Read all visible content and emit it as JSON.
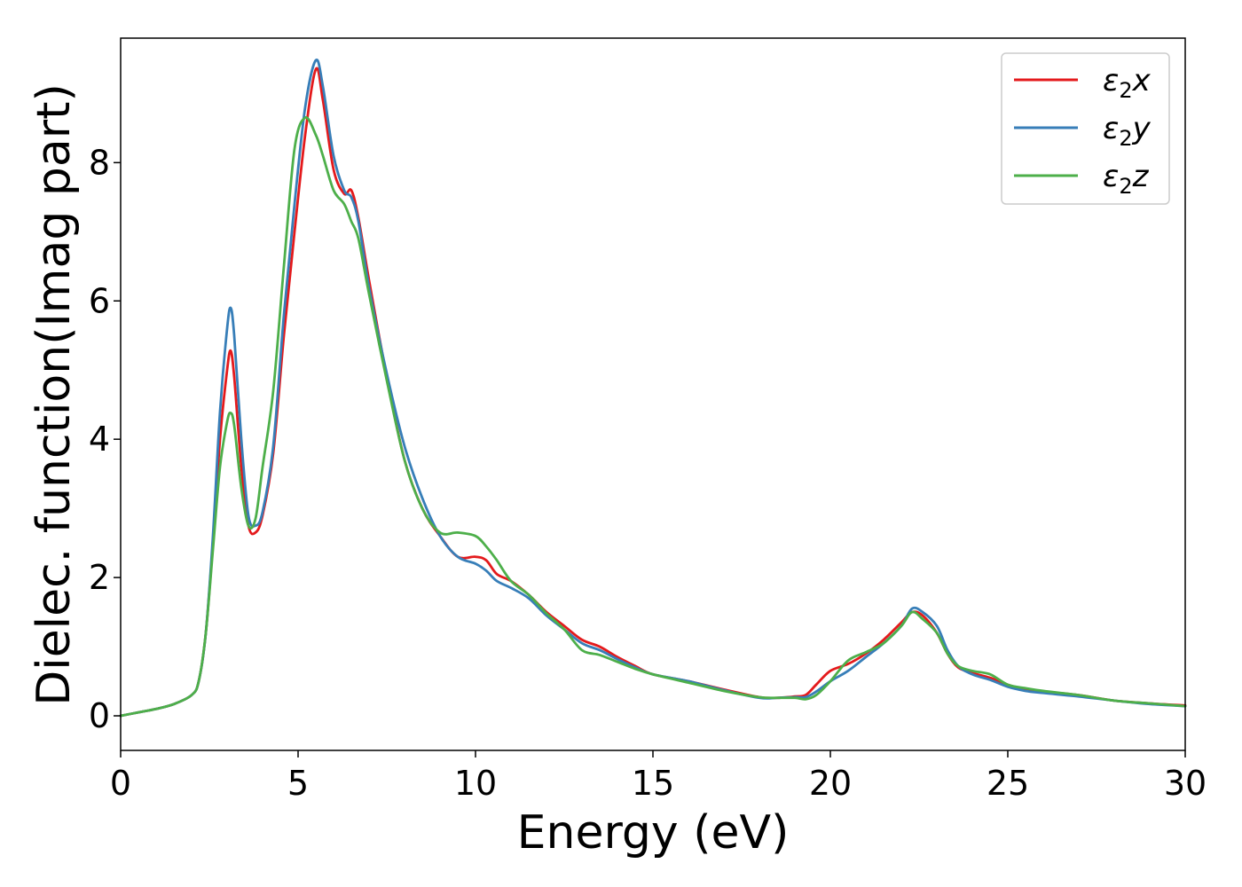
{
  "chart_data": {
    "type": "line",
    "title": "",
    "xlabel": "Energy (eV)",
    "ylabel": "Dielec. function(Imag part)",
    "xlim": [
      0,
      30
    ],
    "ylim": [
      -0.5,
      9.8
    ],
    "xticks": [
      0,
      5,
      10,
      15,
      20,
      25,
      30
    ],
    "xtick_labels": [
      "0",
      "5",
      "10",
      "15",
      "20",
      "25",
      "30"
    ],
    "yticks": [
      0,
      2,
      4,
      6,
      8
    ],
    "ytick_labels": [
      "0",
      "2",
      "4",
      "6",
      "8"
    ],
    "grid": false,
    "legend_position": "top-right",
    "series": [
      {
        "name": "ε₂x",
        "legend_main": "ε",
        "legend_sub": "2",
        "legend_suffix": "x",
        "color": "#e41a1c",
        "x": [
          0,
          0.5,
          1.0,
          1.5,
          2.0,
          2.2,
          2.4,
          2.6,
          2.8,
          3.0,
          3.1,
          3.2,
          3.4,
          3.6,
          3.8,
          4.0,
          4.3,
          4.6,
          4.9,
          5.2,
          5.5,
          5.7,
          6.0,
          6.3,
          6.5,
          6.7,
          7.0,
          7.5,
          8.0,
          8.5,
          9.0,
          9.5,
          10.0,
          10.3,
          10.6,
          11.0,
          11.5,
          12.0,
          12.5,
          13.0,
          13.5,
          14.0,
          14.5,
          15.0,
          16.0,
          17.0,
          18.0,
          18.5,
          19.0,
          19.3,
          19.6,
          20.0,
          20.5,
          21.0,
          21.5,
          22.0,
          22.3,
          22.6,
          23.0,
          23.3,
          23.6,
          24.0,
          24.5,
          25.0,
          25.5,
          26.0,
          27.0,
          28.0,
          29.0,
          30.0
        ],
        "values": [
          0.0,
          0.05,
          0.1,
          0.17,
          0.3,
          0.5,
          1.2,
          2.5,
          4.0,
          5.0,
          5.28,
          4.9,
          3.6,
          2.75,
          2.65,
          2.9,
          3.8,
          5.5,
          7.0,
          8.4,
          9.35,
          8.9,
          7.9,
          7.55,
          7.6,
          7.2,
          6.3,
          4.9,
          3.7,
          3.0,
          2.6,
          2.3,
          2.3,
          2.25,
          2.05,
          1.95,
          1.75,
          1.5,
          1.3,
          1.1,
          1.0,
          0.85,
          0.72,
          0.6,
          0.5,
          0.38,
          0.27,
          0.26,
          0.28,
          0.3,
          0.45,
          0.65,
          0.75,
          0.9,
          1.1,
          1.35,
          1.5,
          1.45,
          1.2,
          0.9,
          0.7,
          0.62,
          0.55,
          0.45,
          0.38,
          0.35,
          0.3,
          0.22,
          0.18,
          0.15
        ]
      },
      {
        "name": "ε₂y",
        "legend_main": "ε",
        "legend_sub": "2",
        "legend_suffix": "y",
        "color": "#377eb8",
        "x": [
          0,
          0.5,
          1.0,
          1.5,
          2.0,
          2.2,
          2.4,
          2.6,
          2.8,
          3.0,
          3.1,
          3.2,
          3.4,
          3.6,
          3.8,
          4.0,
          4.3,
          4.6,
          4.9,
          5.2,
          5.5,
          5.7,
          6.0,
          6.3,
          6.5,
          6.7,
          7.0,
          7.5,
          8.0,
          8.5,
          9.0,
          9.5,
          10.0,
          10.3,
          10.6,
          11.0,
          11.5,
          12.0,
          12.5,
          13.0,
          13.5,
          14.0,
          14.5,
          15.0,
          16.0,
          17.0,
          18.0,
          18.5,
          19.0,
          19.3,
          19.6,
          20.0,
          20.5,
          21.0,
          21.5,
          22.0,
          22.3,
          22.6,
          23.0,
          23.3,
          23.6,
          24.0,
          24.5,
          25.0,
          25.5,
          26.0,
          27.0,
          28.0,
          29.0,
          30.0
        ],
        "values": [
          0.0,
          0.05,
          0.1,
          0.17,
          0.3,
          0.5,
          1.2,
          2.6,
          4.4,
          5.6,
          5.9,
          5.5,
          4.0,
          2.9,
          2.75,
          2.95,
          3.9,
          5.8,
          7.4,
          8.8,
          9.48,
          9.1,
          8.1,
          7.6,
          7.5,
          7.15,
          6.2,
          4.95,
          3.9,
          3.15,
          2.6,
          2.3,
          2.2,
          2.1,
          1.95,
          1.85,
          1.7,
          1.45,
          1.25,
          1.05,
          0.95,
          0.82,
          0.7,
          0.6,
          0.5,
          0.37,
          0.26,
          0.26,
          0.27,
          0.27,
          0.35,
          0.5,
          0.65,
          0.85,
          1.05,
          1.3,
          1.55,
          1.5,
          1.3,
          0.95,
          0.72,
          0.6,
          0.52,
          0.42,
          0.36,
          0.33,
          0.28,
          0.22,
          0.17,
          0.14
        ]
      },
      {
        "name": "ε₂z",
        "legend_main": "ε",
        "legend_sub": "2",
        "legend_suffix": "z",
        "color": "#4daf4a",
        "x": [
          0,
          0.5,
          1.0,
          1.5,
          2.0,
          2.2,
          2.4,
          2.6,
          2.8,
          3.0,
          3.1,
          3.2,
          3.4,
          3.6,
          3.8,
          4.0,
          4.3,
          4.6,
          4.9,
          5.2,
          5.5,
          5.7,
          6.0,
          6.3,
          6.5,
          6.7,
          7.0,
          7.5,
          8.0,
          8.5,
          9.0,
          9.5,
          10.0,
          10.3,
          10.6,
          11.0,
          11.5,
          12.0,
          12.5,
          13.0,
          13.5,
          14.0,
          14.5,
          15.0,
          16.0,
          17.0,
          18.0,
          18.5,
          19.0,
          19.3,
          19.6,
          20.0,
          20.5,
          21.0,
          21.5,
          22.0,
          22.3,
          22.6,
          23.0,
          23.3,
          23.6,
          24.0,
          24.5,
          25.0,
          25.5,
          26.0,
          27.0,
          28.0,
          29.0,
          30.0
        ],
        "values": [
          0.0,
          0.05,
          0.1,
          0.17,
          0.3,
          0.5,
          1.2,
          2.4,
          3.6,
          4.25,
          4.38,
          4.2,
          3.3,
          2.75,
          2.85,
          3.6,
          4.7,
          6.5,
          8.2,
          8.65,
          8.4,
          8.1,
          7.6,
          7.4,
          7.15,
          6.9,
          6.1,
          4.85,
          3.7,
          3.0,
          2.65,
          2.65,
          2.6,
          2.45,
          2.25,
          1.95,
          1.75,
          1.48,
          1.25,
          0.95,
          0.88,
          0.78,
          0.68,
          0.6,
          0.48,
          0.36,
          0.27,
          0.26,
          0.26,
          0.24,
          0.3,
          0.5,
          0.8,
          0.92,
          1.05,
          1.3,
          1.5,
          1.4,
          1.2,
          0.9,
          0.72,
          0.65,
          0.6,
          0.45,
          0.4,
          0.36,
          0.3,
          0.22,
          0.18,
          0.14
        ]
      }
    ]
  }
}
